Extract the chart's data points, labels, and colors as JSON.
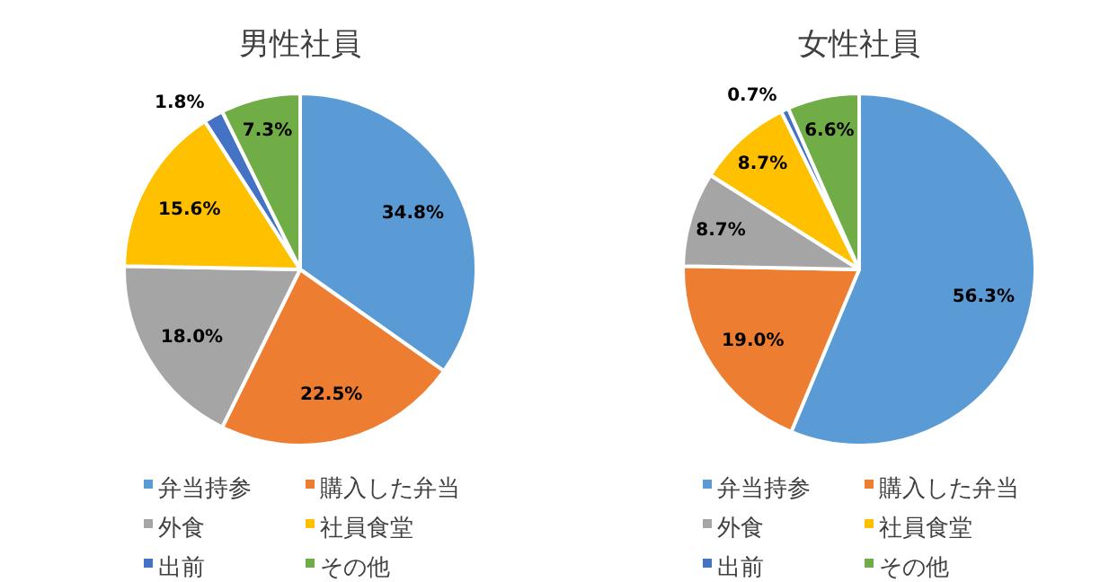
{
  "chart_data": [
    {
      "type": "pie",
      "title": "男性社員",
      "categories": [
        "弁当持参",
        "購入した弁当",
        "外食",
        "社員食堂",
        "出前",
        "その他"
      ],
      "values": [
        34.8,
        22.5,
        18.0,
        15.6,
        1.8,
        7.3
      ],
      "colors": [
        "#5b9bd5",
        "#ed7d31",
        "#a5a5a5",
        "#ffc000",
        "#4472c4",
        "#70ad47"
      ],
      "value_labels": [
        "34.8%",
        "22.5%",
        "18.0%",
        "15.6%",
        "1.8%",
        "7.3%"
      ],
      "legend": "bottom"
    },
    {
      "type": "pie",
      "title": "女性社員",
      "categories": [
        "弁当持参",
        "購入した弁当",
        "外食",
        "社員食堂",
        "出前",
        "その他"
      ],
      "values": [
        56.3,
        19.0,
        8.7,
        8.7,
        0.7,
        6.6
      ],
      "colors": [
        "#5b9bd5",
        "#ed7d31",
        "#a5a5a5",
        "#ffc000",
        "#4472c4",
        "#70ad47"
      ],
      "value_labels": [
        "56.3%",
        "19.0%",
        "8.7%",
        "8.7%",
        "0.7%",
        "6.6%"
      ],
      "legend": "bottom"
    }
  ]
}
